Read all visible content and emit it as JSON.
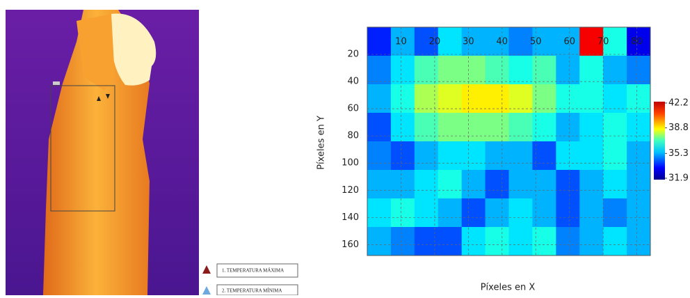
{
  "legend": {
    "items": [
      "1. TEMPERATURA MÁXIMA",
      "2. TEMPERATURA MÍNIMA"
    ]
  },
  "chart_data": {
    "type": "heatmap",
    "x_label": "Píxeles en X",
    "y_label": "Píxeles en Y",
    "xlim": [
      0,
      84
    ],
    "ylim": [
      168,
      0
    ],
    "xticks": [
      10,
      20,
      30,
      40,
      50,
      60,
      70,
      80
    ],
    "yticks": [
      20,
      40,
      60,
      80,
      100,
      120,
      140,
      160
    ],
    "x_bins": [
      0,
      7,
      14,
      21,
      28,
      35,
      42,
      49,
      56,
      63,
      70,
      77,
      84
    ],
    "y_bins": [
      0,
      21,
      42,
      63,
      84,
      105,
      126,
      147,
      168
    ],
    "z": [
      [
        33.5,
        35,
        34,
        35.5,
        35,
        35,
        34.5,
        35,
        35,
        41,
        36,
        33
      ],
      [
        34.5,
        35.5,
        36.5,
        37,
        37,
        36.5,
        36,
        36.5,
        35,
        36,
        35,
        34.5
      ],
      [
        35,
        36,
        37.5,
        38,
        38.5,
        38.5,
        38,
        37,
        36,
        36,
        35.5,
        36
      ],
      [
        34,
        35.5,
        36.5,
        37,
        37,
        37,
        36.5,
        36,
        35,
        35.5,
        36,
        35.5
      ],
      [
        34.5,
        34,
        35,
        35.5,
        35.5,
        35,
        35,
        34,
        35.5,
        35.5,
        36,
        35
      ],
      [
        35,
        35,
        35.5,
        36,
        35,
        34,
        35,
        35,
        34,
        35,
        35.5,
        35
      ],
      [
        35.5,
        36,
        35.5,
        35,
        34,
        35,
        35.5,
        35,
        34,
        35,
        34.5,
        35
      ],
      [
        35,
        34.5,
        34,
        34,
        35.5,
        36,
        35.5,
        36,
        34.5,
        35,
        35.5,
        35
      ]
    ],
    "colorbar": {
      "lim": [
        31.9,
        42.2
      ],
      "ticks": [
        42.2,
        38.8,
        35.3,
        31.9
      ]
    },
    "grid": true
  }
}
